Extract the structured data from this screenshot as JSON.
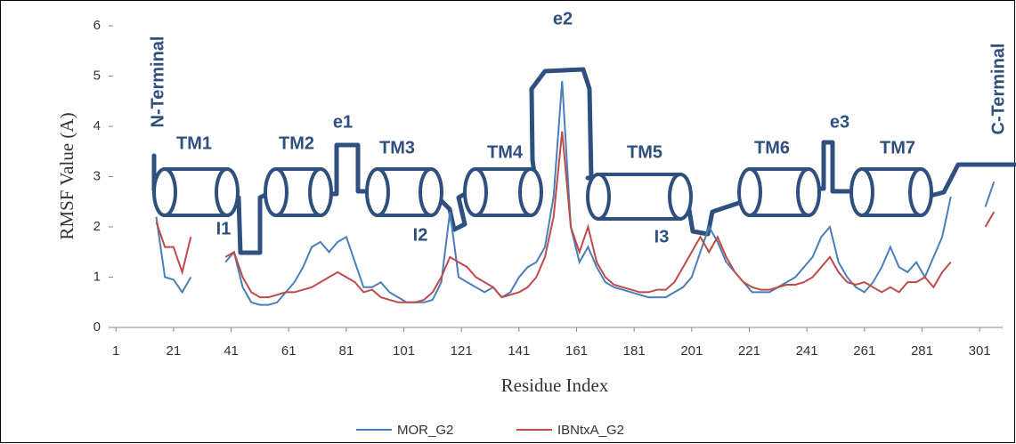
{
  "chart_data": {
    "type": "line",
    "x_label": "Residue Index",
    "y_label": "RMSF Value (A)",
    "xlim": [
      0,
      309
    ],
    "xticks": [
      1,
      21,
      41,
      61,
      81,
      101,
      121,
      141,
      161,
      181,
      201,
      221,
      241,
      261,
      281,
      301
    ],
    "ylim": [
      0,
      6
    ],
    "yticks": [
      0,
      1,
      2,
      3,
      4,
      5,
      6
    ],
    "grid": false,
    "legend": "bottom",
    "annotations": [
      "N-Terminal",
      "TM1",
      "TM2",
      "e1",
      "TM3",
      "TM4",
      "e2",
      "TM5",
      "TM6",
      "e3",
      "TM7",
      "C-Terminal",
      "I1",
      "I2",
      "I3"
    ],
    "x": [
      15,
      18,
      21,
      24,
      27,
      30,
      33,
      36,
      39,
      42,
      45,
      48,
      51,
      54,
      57,
      60,
      63,
      66,
      69,
      72,
      75,
      78,
      81,
      84,
      87,
      90,
      93,
      96,
      99,
      102,
      105,
      108,
      111,
      114,
      117,
      120,
      123,
      126,
      129,
      132,
      135,
      138,
      141,
      144,
      147,
      150,
      153,
      156,
      159,
      162,
      165,
      168,
      171,
      174,
      177,
      180,
      183,
      186,
      189,
      192,
      195,
      198,
      201,
      204,
      207,
      210,
      213,
      216,
      219,
      222,
      225,
      228,
      231,
      234,
      237,
      240,
      243,
      246,
      249,
      252,
      255,
      258,
      261,
      264,
      267,
      270,
      273,
      276,
      279,
      282,
      285,
      288,
      291,
      294,
      297,
      300,
      303,
      306
    ],
    "series": [
      {
        "name": "MOR_G2",
        "color": "#4a7ebb",
        "values": [
          2.2,
          1.0,
          0.95,
          0.7,
          1.0,
          null,
          null,
          null,
          1.3,
          1.5,
          0.8,
          0.5,
          0.45,
          0.45,
          0.5,
          0.7,
          0.9,
          1.2,
          1.6,
          1.7,
          1.5,
          1.7,
          1.8,
          1.3,
          0.8,
          0.8,
          0.9,
          0.7,
          0.6,
          0.5,
          0.5,
          0.5,
          0.55,
          0.9,
          2.3,
          1.0,
          0.9,
          0.8,
          0.7,
          0.8,
          0.6,
          0.7,
          1.0,
          1.2,
          1.3,
          1.6,
          2.6,
          4.9,
          2.0,
          1.3,
          1.6,
          1.2,
          0.9,
          0.8,
          0.75,
          0.7,
          0.65,
          0.6,
          0.6,
          0.6,
          0.7,
          0.8,
          1.0,
          1.5,
          2.0,
          1.7,
          1.3,
          1.1,
          0.9,
          0.7,
          0.7,
          0.7,
          0.8,
          0.9,
          1.0,
          1.2,
          1.4,
          1.8,
          2.0,
          1.3,
          1.0,
          0.8,
          0.7,
          0.9,
          1.2,
          1.6,
          1.2,
          1.1,
          1.3,
          1.0,
          1.4,
          1.8,
          2.6,
          null,
          null,
          null,
          2.4,
          2.9
        ]
      },
      {
        "name": "IBNtxA_G2",
        "color": "#be4b48",
        "values": [
          2.1,
          1.6,
          1.6,
          1.1,
          1.8,
          null,
          null,
          null,
          1.4,
          1.5,
          1.0,
          0.7,
          0.6,
          0.6,
          0.65,
          0.7,
          0.7,
          0.75,
          0.8,
          0.9,
          1.0,
          1.1,
          1.0,
          0.9,
          0.7,
          0.75,
          0.6,
          0.55,
          0.5,
          0.5,
          0.5,
          0.55,
          0.7,
          1.0,
          1.4,
          1.3,
          1.2,
          1.0,
          0.9,
          0.8,
          0.6,
          0.65,
          0.7,
          0.8,
          1.0,
          1.4,
          2.2,
          3.9,
          2.0,
          1.5,
          2.0,
          1.3,
          1.0,
          0.85,
          0.8,
          0.75,
          0.7,
          0.7,
          0.75,
          0.75,
          0.9,
          1.2,
          1.5,
          1.8,
          1.5,
          1.8,
          1.4,
          1.1,
          0.9,
          0.8,
          0.75,
          0.75,
          0.8,
          0.85,
          0.85,
          0.9,
          1.0,
          1.2,
          1.4,
          1.1,
          0.9,
          0.85,
          0.9,
          0.8,
          0.7,
          0.8,
          0.7,
          0.9,
          0.9,
          1.0,
          0.8,
          1.1,
          1.3,
          null,
          null,
          null,
          2.0,
          2.3
        ]
      }
    ]
  }
}
